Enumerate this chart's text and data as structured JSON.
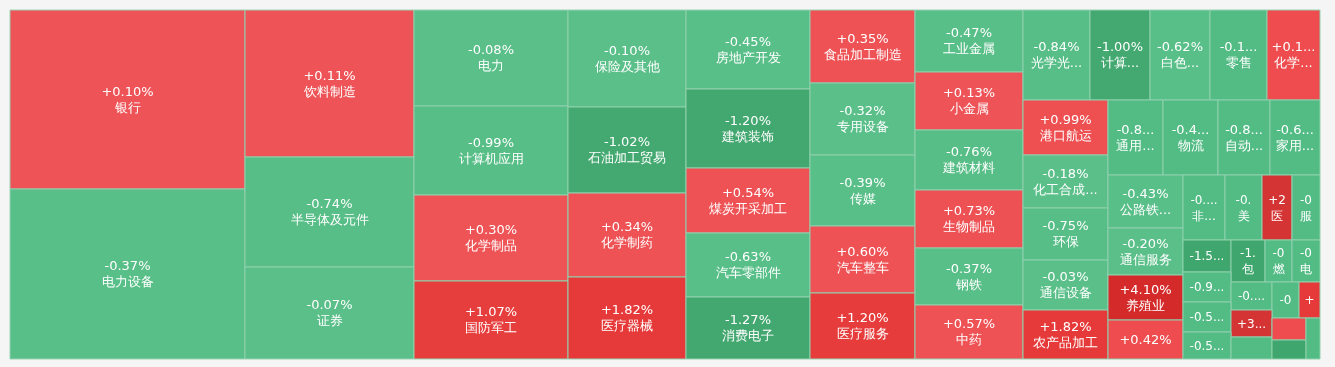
{
  "chart_data": {
    "type": "other",
    "categories": [
      "银行",
      "电力设备",
      "饮料制造",
      "半导体及元件",
      "证券",
      "电力",
      "计算机应用",
      "化学制品",
      "国防军工",
      "保险及其他",
      "石油加工贸易",
      "化学制药",
      "医疗器械",
      "房地产开发",
      "建筑装饰",
      "煤炭开采加工",
      "汽车零部件",
      "消费电子",
      "食品加工制造",
      "专用设备",
      "传媒",
      "汽车整车",
      "医疗服务",
      "工业金属",
      "小金属",
      "建筑材料",
      "生物制品",
      "钢铁",
      "中药",
      "光学光...",
      "计算...",
      "白色...",
      "零售",
      "化学...",
      "港口航运",
      "化工合成...",
      "环保",
      "通信设备",
      "农产品加工",
      "通用...",
      "物流",
      "自动...",
      "家用...",
      "公路铁...",
      "通信服务",
      "养殖业",
      null,
      "非...",
      "美",
      "医",
      "服",
      null,
      "包",
      "燃",
      "电",
      null,
      null,
      null,
      null,
      null,
      null,
      null,
      null,
      null,
      null,
      null
    ],
    "values": [
      0.1,
      -0.37,
      0.11,
      -0.74,
      -0.07,
      -0.08,
      -0.99,
      0.3,
      1.07,
      -0.1,
      -1.02,
      0.34,
      1.82,
      -0.45,
      -1.2,
      0.54,
      -0.63,
      -1.27,
      0.35,
      -0.32,
      -0.39,
      0.6,
      1.2,
      -0.47,
      0.13,
      -0.76,
      0.73,
      -0.37,
      0.57,
      -0.84,
      -1.0,
      -0.62,
      null,
      null,
      0.99,
      -0.18,
      -0.75,
      -0.03,
      1.82,
      null,
      null,
      null,
      null,
      -0.43,
      -0.2,
      4.1,
      null,
      null,
      null,
      null,
      null,
      null,
      null,
      null,
      null,
      null,
      null,
      null,
      null,
      null,
      null,
      null,
      null,
      null,
      null,
      null
    ],
    "value_labels": [
      "+0.10%",
      "-0.37%",
      "+0.11%",
      "-0.74%",
      "-0.07%",
      "-0.08%",
      "-0.99%",
      "+0.30%",
      "+1.07%",
      "-0.10%",
      "-1.02%",
      "+0.34%",
      "+1.82%",
      "-0.45%",
      "-1.20%",
      "+0.54%",
      "-0.63%",
      "-1.27%",
      "+0.35%",
      "-0.32%",
      "-0.39%",
      "+0.60%",
      "+1.20%",
      "-0.47%",
      "+0.13%",
      "-0.76%",
      "+0.73%",
      "-0.37%",
      "+0.57%",
      "-0.84%",
      "-1.00%",
      "-0.62%",
      "-0.1...",
      "+0.1...",
      "+0.99%",
      "-0.18%",
      "-0.75%",
      "-0.03%",
      "+1.82%",
      "-0.8...",
      "-0.4...",
      "-0.8...",
      "-0.6...",
      "-0.43%",
      "-0.20%",
      "+4.10%",
      "+0.42%",
      "-0....",
      "-0.",
      "+2",
      "-0",
      "-1.5...",
      "-1.",
      "-0",
      "-0",
      "-0.9...",
      "-0....",
      "-0",
      "+",
      "-0.5...",
      "+3...",
      "-0.5...",
      null,
      null,
      null,
      null
    ],
    "colors": [
      "#ee4346",
      "#4aba7e",
      "#ee4346",
      "#4aba7e",
      "#4aba7e",
      "#4aba7e",
      "#4aba7e",
      "#ee4346",
      "#e5302f",
      "#4aba7e",
      "#36a367",
      "#ee4346",
      "#e5302f",
      "#4aba7e",
      "#36a367",
      "#ee4346",
      "#4aba7e",
      "#36a367",
      "#ee4346",
      "#4aba7e",
      "#4aba7e",
      "#ee4346",
      "#e5302f",
      "#4aba7e",
      "#ee4346",
      "#4aba7e",
      "#ee4346",
      "#4aba7e",
      "#ee4346",
      "#4aba7e",
      "#36a367",
      "#4aba7e",
      "#4aba7e",
      "#ee4346",
      "#ee4346",
      "#4aba7e",
      "#4aba7e",
      "#4aba7e",
      "#e5302f",
      "#4aba7e",
      "#4aba7e",
      "#4aba7e",
      "#4aba7e",
      "#4aba7e",
      "#4aba7e",
      "#d42a2a",
      "#ee4346",
      "#4aba7e",
      "#4aba7e",
      "#d42a2a",
      "#4aba7e",
      "#36a367",
      "#36a367",
      "#4aba7e",
      "#4aba7e",
      "#4aba7e",
      "#4aba7e",
      "#4aba7e",
      "#e5302f",
      "#4aba7e",
      "#d42a2a",
      "#4aba7e",
      "#4aba7e",
      "#ee4346",
      "#36a367",
      "#4aba7e"
    ]
  }
}
